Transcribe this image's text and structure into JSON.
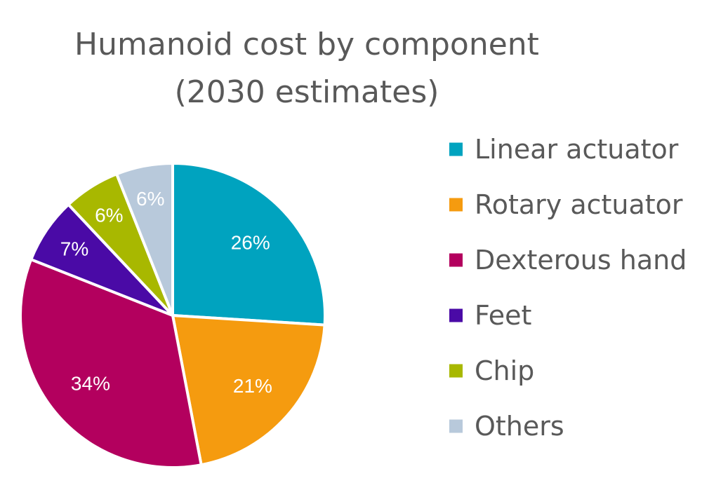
{
  "chart_data": {
    "type": "pie",
    "title": [
      "Humanoid cost by component",
      "(2030 estimates)"
    ],
    "categories": [
      "Linear actuator",
      "Rotary actuator",
      "Dexterous hand",
      "Feet",
      "Chip",
      "Others"
    ],
    "values": [
      26,
      21,
      34,
      7,
      6,
      6
    ],
    "labels": [
      "26%",
      "21%",
      "34%",
      "7%",
      "6%",
      "6%"
    ],
    "colors": [
      "#00a3bf",
      "#f59b0f",
      "#b3005e",
      "#4a0aa6",
      "#a8b800",
      "#b8c9db"
    ],
    "legend_position": "right",
    "start": "12 o'clock",
    "direction": "clockwise"
  }
}
